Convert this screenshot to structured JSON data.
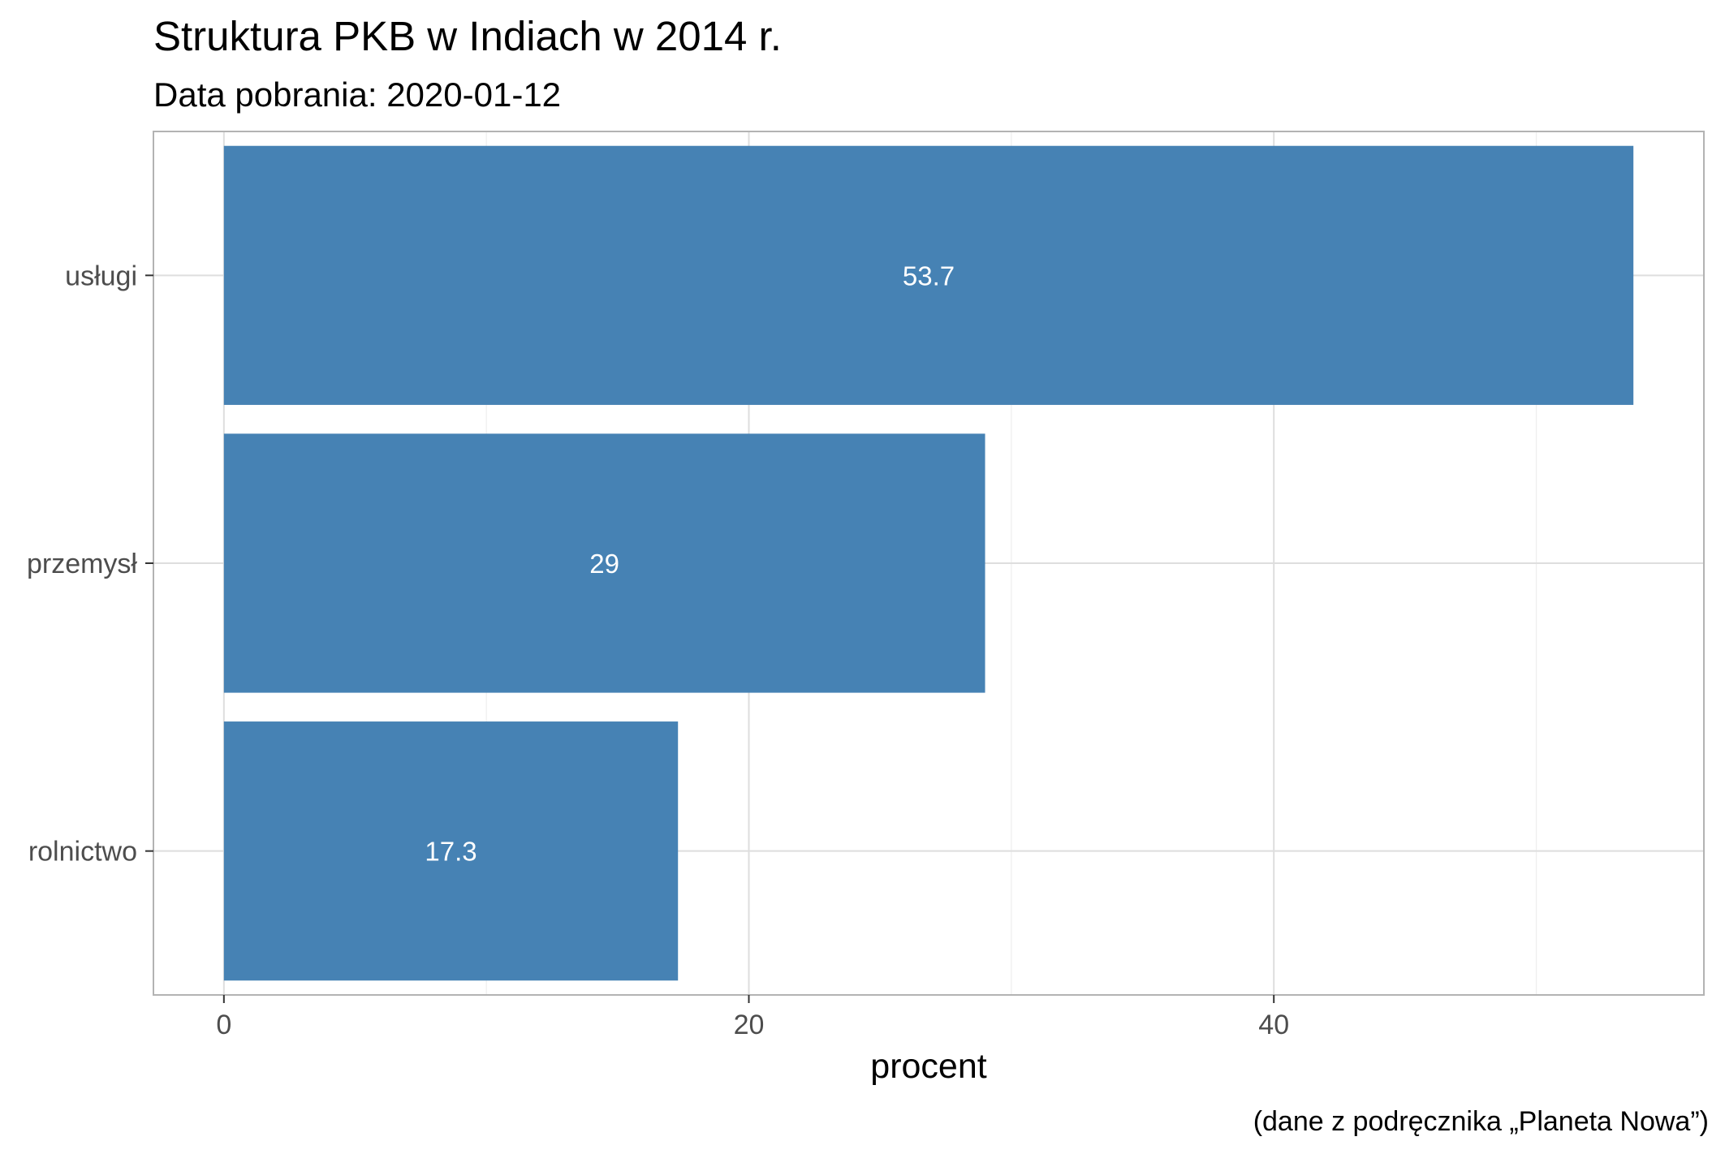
{
  "chart_data": {
    "type": "bar",
    "orientation": "horizontal",
    "title": "Struktura PKB w Indiach w 2014 r.",
    "subtitle": "Data pobrania: 2020-01-12",
    "caption": "(dane z podręcznika „Planeta Nowa”)",
    "xlabel": "procent",
    "ylabel": "",
    "categories": [
      "usługi",
      "przemysł",
      "rolnictwo"
    ],
    "values": [
      53.7,
      29,
      17.3
    ],
    "value_labels": [
      "53.7",
      "29",
      "17.3"
    ],
    "xlim": [
      -2.685,
      56.385
    ],
    "x_ticks": [
      0,
      20,
      40
    ],
    "x_tick_labels": [
      "0",
      "20",
      "40"
    ],
    "x_minor_ticks": [
      10,
      30,
      50
    ],
    "grid": true,
    "legend": "none",
    "colors": {
      "bar": "#4682b4",
      "value_label": "#ffffff",
      "grid_major": "#dedede",
      "grid_minor": "#eeeeee",
      "panel_border": "#b3b3b3",
      "axis_text": "#4d4d4d",
      "title_text": "#000000"
    }
  }
}
